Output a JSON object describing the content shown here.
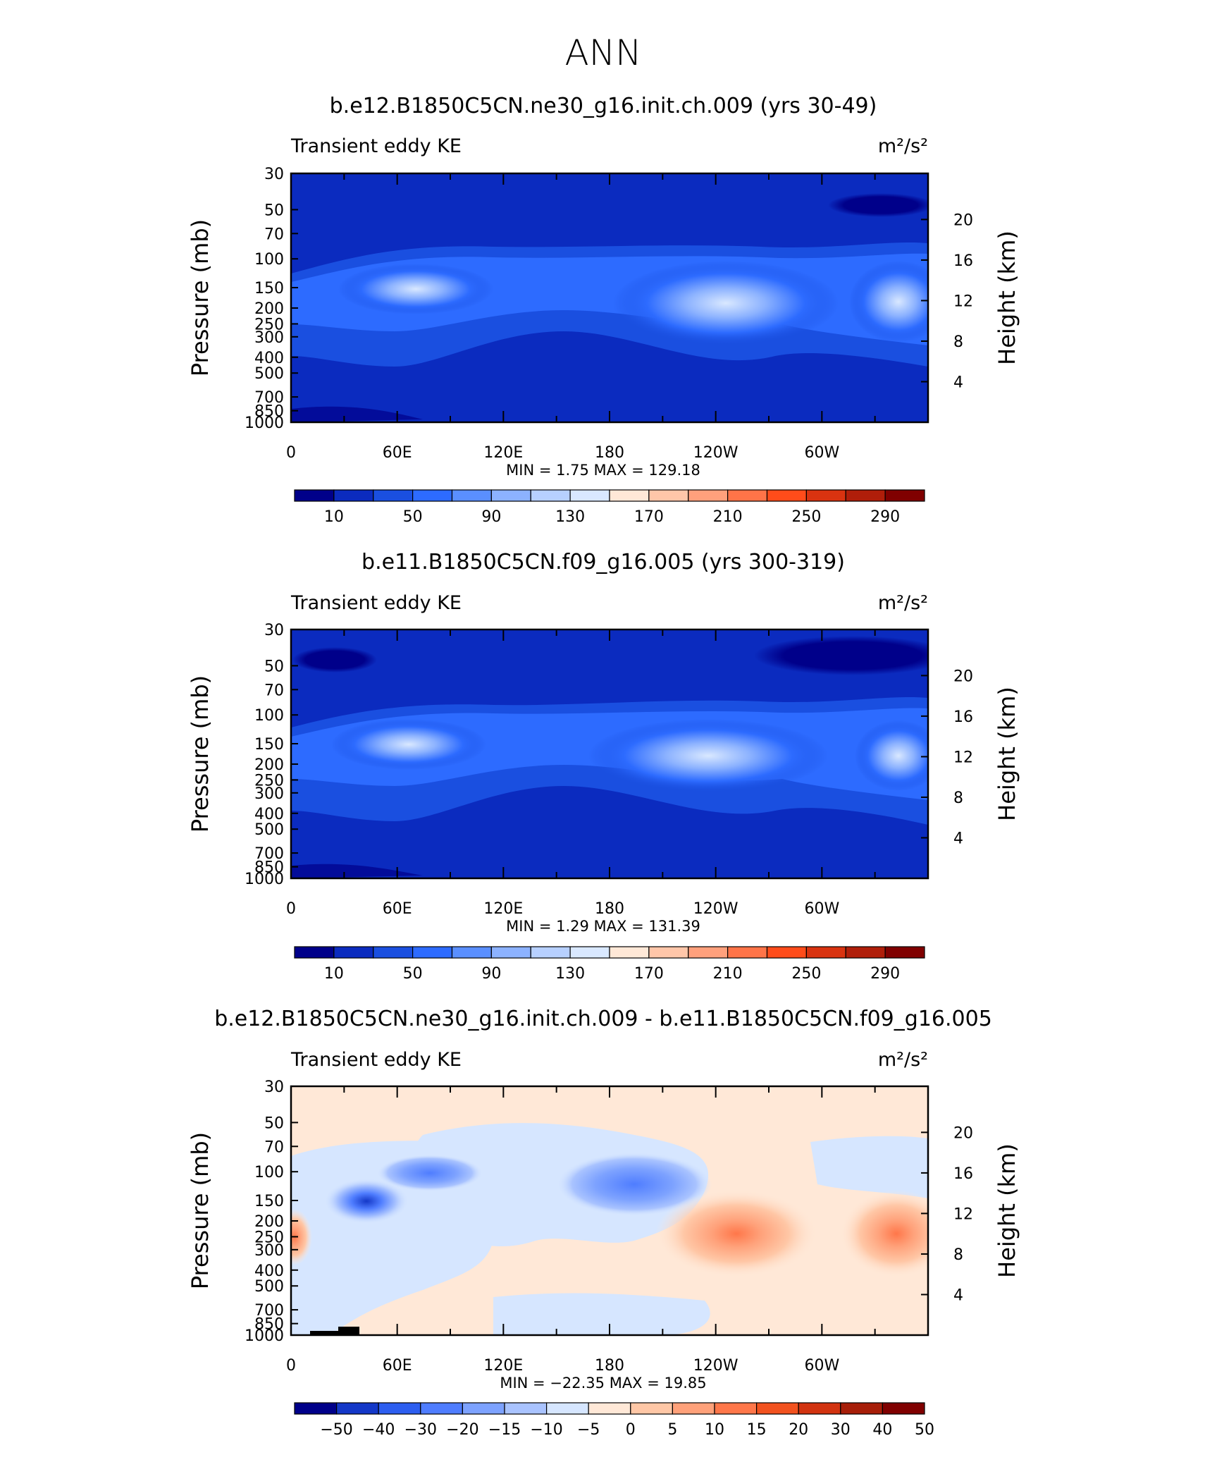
{
  "figure": {
    "title": "ANN"
  },
  "panels": [
    {
      "title": "b.e12.B1850C5CN.ne30_g16.init.ch.009 (yrs 30-49)",
      "left_label": "Transient eddy KE",
      "units": "m²/s²",
      "stats": "MIN =     1.75   MAX =  129.18",
      "kind": "abs"
    },
    {
      "title": "b.e11.B1850C5CN.f09_g16.005 (yrs 300-319)",
      "left_label": "Transient eddy KE",
      "units": "m²/s²",
      "stats": "MIN =     1.29   MAX =  131.39",
      "kind": "abs"
    },
    {
      "title": "b.e12.B1850C5CN.ne30_g16.init.ch.009 - b.e11.B1850C5CN.f09_g16.005",
      "left_label": "Transient eddy KE",
      "units": "m²/s²",
      "stats": "MIN =  −22.35   MAX =   19.85",
      "kind": "diff"
    }
  ],
  "colors": {
    "abs_levels": [
      "#00008a",
      "#0b2bbf",
      "#1a4fe0",
      "#2d6bff",
      "#5a8fff",
      "#8cb2ff",
      "#b7d0ff",
      "#d9e8ff",
      "#ffe8d7",
      "#ffc6a9",
      "#ffa07c",
      "#ff7448",
      "#ff4c1a",
      "#d93310",
      "#b01e0a",
      "#800000"
    ],
    "diff_levels": [
      "#00008a",
      "#1438c8",
      "#2d5ef0",
      "#4f7dff",
      "#7da2ff",
      "#a9c3ff",
      "#d6e6ff",
      "#ffe8d7",
      "#ffc7a6",
      "#ffa17a",
      "#ff774a",
      "#f2521f",
      "#d23310",
      "#a71e09",
      "#800000"
    ]
  },
  "chart_data": [
    {
      "type": "heatmap",
      "title": "b.e12.B1850C5CN.ne30_g16.init.ch.009 (yrs 30-49)",
      "xlabel": "",
      "ylabel": "Pressure (mb)",
      "ylabel_right": "Height (km)",
      "x_ticks": [
        "0",
        "60E",
        "120E",
        "180",
        "120W",
        "60W"
      ],
      "y_ticks": [
        "30",
        "50",
        "70",
        "100",
        "150",
        "200",
        "250",
        "300",
        "400",
        "500",
        "700",
        "850",
        "1000"
      ],
      "y_right_ticks": [
        "4",
        "8",
        "12",
        "16",
        "20"
      ],
      "min": 1.75,
      "max": 129.18,
      "levels_labels": [
        "10",
        "50",
        "90",
        "130",
        "170",
        "210",
        "250",
        "290"
      ],
      "regions": [
        {
          "lon": 60,
          "p": 150,
          "value": 130
        },
        {
          "lon": 240,
          "p": 180,
          "value": 130
        },
        {
          "lon": 330,
          "p": 180,
          "value": 130
        },
        {
          "lon": 340,
          "p": 50,
          "value": 5
        }
      ]
    },
    {
      "type": "heatmap",
      "title": "b.e11.B1850C5CN.f09_g16.005 (yrs 300-319)",
      "xlabel": "",
      "ylabel": "Pressure (mb)",
      "ylabel_right": "Height (km)",
      "x_ticks": [
        "0",
        "60E",
        "120E",
        "180",
        "120W",
        "60W"
      ],
      "y_ticks": [
        "30",
        "50",
        "70",
        "100",
        "150",
        "200",
        "250",
        "300",
        "400",
        "500",
        "700",
        "850",
        "1000"
      ],
      "y_right_ticks": [
        "4",
        "8",
        "12",
        "16",
        "20"
      ],
      "min": 1.29,
      "max": 131.39,
      "levels_labels": [
        "10",
        "50",
        "90",
        "130",
        "170",
        "210",
        "250",
        "290"
      ],
      "regions": [
        {
          "lon": 60,
          "p": 150,
          "value": 130
        },
        {
          "lon": 240,
          "p": 170,
          "value": 130
        },
        {
          "lon": 335,
          "p": 160,
          "value": 130
        },
        {
          "lon": 20,
          "p": 45,
          "value": 5
        },
        {
          "lon": 320,
          "p": 45,
          "value": 5
        }
      ]
    },
    {
      "type": "heatmap",
      "title": "b.e12.B1850C5CN.ne30_g16.init.ch.009 - b.e11.B1850C5CN.f09_g16.005",
      "xlabel": "",
      "ylabel": "Pressure (mb)",
      "ylabel_right": "Height (km)",
      "x_ticks": [
        "0",
        "60E",
        "120E",
        "180",
        "120W",
        "60W"
      ],
      "y_ticks": [
        "30",
        "50",
        "70",
        "100",
        "150",
        "200",
        "250",
        "300",
        "400",
        "500",
        "700",
        "850",
        "1000"
      ],
      "y_right_ticks": [
        "4",
        "8",
        "12",
        "16",
        "20"
      ],
      "min": -22.35,
      "max": 19.85,
      "levels_labels": [
        "−50",
        "−40",
        "−30",
        "−20",
        "−15",
        "−10",
        "−5",
        "0",
        "5",
        "10",
        "15",
        "20",
        "30",
        "40",
        "50"
      ],
      "regions": [
        {
          "lon": 40,
          "p": 150,
          "value": -20
        },
        {
          "lon": 70,
          "p": 105,
          "value": -15
        },
        {
          "lon": 195,
          "p": 120,
          "value": -15
        },
        {
          "lon": 250,
          "p": 240,
          "value": 20
        },
        {
          "lon": 340,
          "p": 240,
          "value": 20
        }
      ]
    }
  ]
}
